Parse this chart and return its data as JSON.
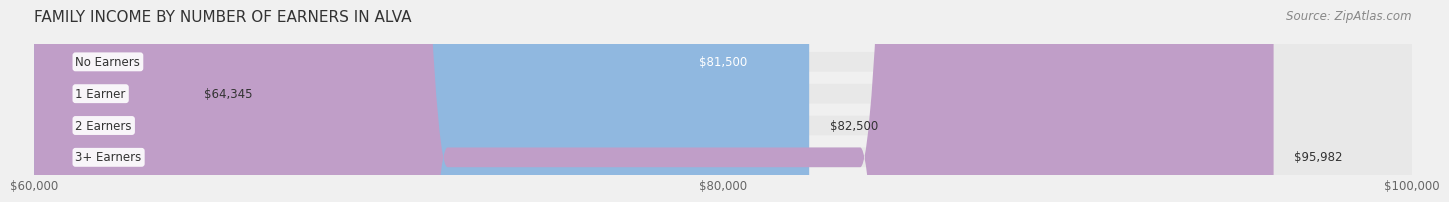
{
  "title": "FAMILY INCOME BY NUMBER OF EARNERS IN ALVA",
  "source_text": "Source: ZipAtlas.com",
  "categories": [
    "No Earners",
    "1 Earner",
    "2 Earners",
    "3+ Earners"
  ],
  "values": [
    81500,
    64345,
    82500,
    95982
  ],
  "bar_colors": [
    "#f5b97f",
    "#f0a0a0",
    "#90b8e0",
    "#c09ec8"
  ],
  "label_colors": [
    "#333333",
    "#333333",
    "#333333",
    "#ffffff"
  ],
  "xlim_min": 60000,
  "xlim_max": 100000,
  "xtick_values": [
    60000,
    80000,
    100000
  ],
  "xtick_labels": [
    "$60,000",
    "$80,000",
    "$100,000"
  ],
  "bg_color": "#f0f0f0",
  "bar_bg_color": "#e8e8e8",
  "title_fontsize": 11,
  "source_fontsize": 8.5,
  "label_fontsize": 8.5,
  "value_fontsize": 8.5,
  "tick_fontsize": 8.5
}
